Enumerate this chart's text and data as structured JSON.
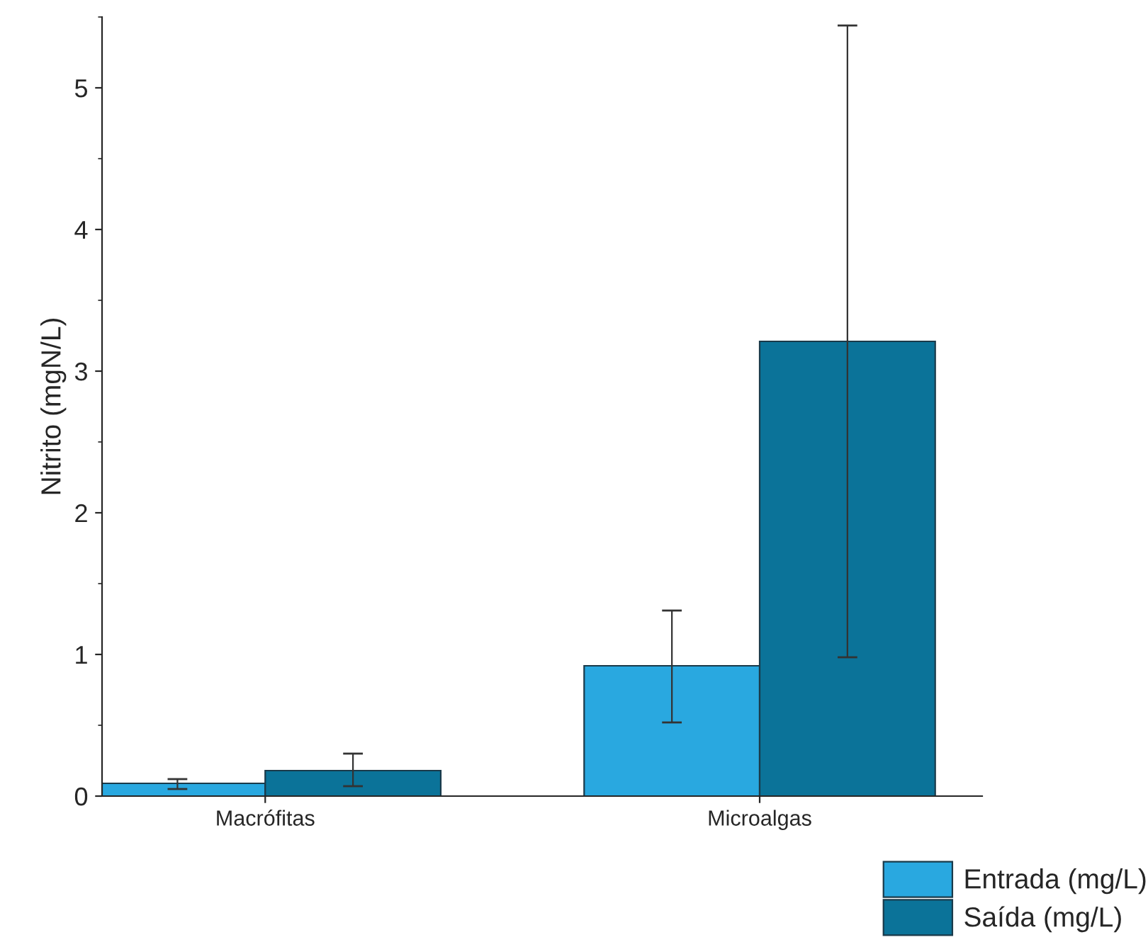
{
  "chart_data": {
    "type": "bar",
    "ylabel": "Nitrito (mgN/L)",
    "categories": [
      "Macrófitas",
      "Microalgas"
    ],
    "series": [
      {
        "name": "Entrada (mg/L)",
        "color": "#29a8e0",
        "values": [
          0.09,
          0.92
        ],
        "errors": [
          [
            0.05,
            0.12
          ],
          [
            0.52,
            1.31
          ]
        ]
      },
      {
        "name": "Saída (mg/L)",
        "color": "#0b7399",
        "values": [
          0.18,
          3.21
        ],
        "errors": [
          [
            0.07,
            0.3
          ],
          [
            0.98,
            5.44
          ]
        ]
      }
    ],
    "ylim": [
      0,
      5.5
    ],
    "yticks": [
      0,
      1,
      2,
      3,
      4,
      5
    ],
    "grid": false,
    "legend": "bottom right"
  }
}
